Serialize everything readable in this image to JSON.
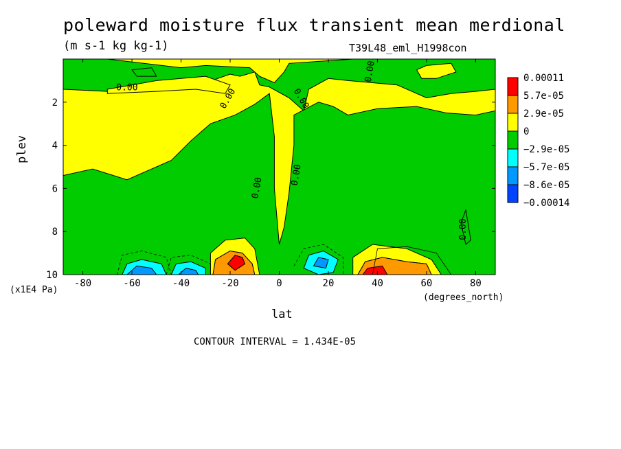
{
  "title": "poleward moisture flux transient mean merdional",
  "units": "(m s-1 kg kg-1)",
  "run_name": "T39L48_eml_H1998con",
  "contour_interval": "CONTOUR INTERVAL = 1.434E-05",
  "chart_data": {
    "type": "heatmap",
    "xlabel": "lat",
    "xunits": "(degrees_north)",
    "ylabel": "plev",
    "yunits": "(x1E4 Pa)",
    "xlim": [
      -88,
      88
    ],
    "ylim": [
      10,
      0
    ],
    "x_ticks": [
      -80,
      -60,
      -40,
      -20,
      0,
      20,
      40,
      60,
      80
    ],
    "y_ticks": [
      2,
      4,
      6,
      8,
      10
    ],
    "contour_label": "0.00",
    "colorbar": {
      "labels": [
        "0.00011",
        "5.7e-05",
        "2.9e-05",
        "0",
        "−2.9e-05",
        "−5.7e-05",
        "−8.6e-05",
        "−0.00014"
      ],
      "colors": [
        "#ff0000",
        "#ff9900",
        "#ffff00",
        "#00cc00",
        "#00ffff",
        "#0099ff",
        "#0044ff"
      ]
    },
    "base_color": "#ffff00",
    "regions": [
      {
        "color": "#00cc00",
        "points": [
          [
            -88,
            0
          ],
          [
            -70,
            0
          ],
          [
            -40,
            0.4
          ],
          [
            -30,
            0.3
          ],
          [
            -12,
            0.4
          ],
          [
            -8,
            0.8
          ],
          [
            -2,
            1.1
          ],
          [
            2,
            0.6
          ],
          [
            4,
            0.2
          ],
          [
            30,
            0
          ],
          [
            60,
            0
          ],
          [
            88,
            0
          ],
          [
            88,
            1.4
          ],
          [
            80,
            1.5
          ],
          [
            70,
            1.6
          ],
          [
            60,
            1.8
          ],
          [
            48,
            1.2
          ],
          [
            38,
            1.1
          ],
          [
            28,
            1.0
          ],
          [
            20,
            0.9
          ],
          [
            12,
            1.4
          ],
          [
            10,
            2.4
          ],
          [
            4,
            1.8
          ],
          [
            -4,
            1.3
          ],
          [
            -8,
            1.2
          ],
          [
            -10,
            0.6
          ],
          [
            -16,
            0.8
          ],
          [
            -20,
            0.7
          ],
          [
            -30,
            1.1
          ],
          [
            -40,
            1.0
          ],
          [
            -50,
            1.4
          ],
          [
            -60,
            1.5
          ],
          [
            -70,
            1.5
          ],
          [
            -88,
            1.4
          ]
        ]
      },
      {
        "color": "#00cc00",
        "points": [
          [
            -88,
            5.4
          ],
          [
            -76,
            5.1
          ],
          [
            -62,
            5.6
          ],
          [
            -44,
            4.7
          ],
          [
            -36,
            3.8
          ],
          [
            -28,
            3.0
          ],
          [
            -18,
            2.6
          ],
          [
            -10,
            2.1
          ],
          [
            -4,
            1.6
          ],
          [
            -2,
            3.6
          ],
          [
            -2,
            6.0
          ],
          [
            0,
            8.6
          ],
          [
            2,
            7.8
          ],
          [
            4,
            6.2
          ],
          [
            6,
            4.0
          ],
          [
            6,
            2.6
          ],
          [
            16,
            2.0
          ],
          [
            22,
            2.2
          ],
          [
            28,
            2.6
          ],
          [
            40,
            2.3
          ],
          [
            56,
            2.2
          ],
          [
            68,
            2.5
          ],
          [
            80,
            2.6
          ],
          [
            88,
            2.4
          ],
          [
            88,
            10
          ],
          [
            -88,
            10
          ]
        ]
      },
      {
        "color": "#ffff00",
        "points": [
          [
            -28,
            10
          ],
          [
            -28,
            9.0
          ],
          [
            -22,
            8.4
          ],
          [
            -14,
            8.3
          ],
          [
            -10,
            8.8
          ],
          [
            -8,
            10
          ]
        ]
      },
      {
        "color": "#ff9900",
        "points": [
          [
            -27,
            10
          ],
          [
            -26,
            9.3
          ],
          [
            -20,
            8.9
          ],
          [
            -15,
            9.0
          ],
          [
            -11,
            9.5
          ],
          [
            -10,
            10
          ]
        ]
      },
      {
        "color": "#ff0000",
        "points": [
          [
            -21,
            9.5
          ],
          [
            -18,
            9.1
          ],
          [
            -15,
            9.2
          ],
          [
            -14,
            9.5
          ],
          [
            -18,
            9.8
          ]
        ]
      },
      {
        "color": "#ffff00",
        "points": [
          [
            30,
            10
          ],
          [
            30,
            9.2
          ],
          [
            38,
            8.6
          ],
          [
            52,
            8.8
          ],
          [
            62,
            9.3
          ],
          [
            66,
            10
          ]
        ]
      },
      {
        "color": "#ff9900",
        "points": [
          [
            32,
            10
          ],
          [
            35,
            9.4
          ],
          [
            42,
            9.2
          ],
          [
            52,
            9.4
          ],
          [
            60,
            9.5
          ],
          [
            62,
            10
          ]
        ]
      },
      {
        "color": "#ff0000",
        "points": [
          [
            34,
            10
          ],
          [
            36,
            9.7
          ],
          [
            42,
            9.6
          ],
          [
            44,
            10
          ]
        ]
      },
      {
        "color": "#00ffff",
        "points": [
          [
            -64,
            10
          ],
          [
            -62,
            9.5
          ],
          [
            -56,
            9.3
          ],
          [
            -48,
            9.5
          ],
          [
            -46,
            10
          ]
        ]
      },
      {
        "color": "#0099ff",
        "points": [
          [
            -62,
            10
          ],
          [
            -58,
            9.6
          ],
          [
            -52,
            9.7
          ],
          [
            -50,
            10
          ]
        ]
      },
      {
        "color": "#00ffff",
        "points": [
          [
            -44,
            10
          ],
          [
            -42,
            9.5
          ],
          [
            -36,
            9.4
          ],
          [
            -30,
            9.7
          ],
          [
            -30,
            10
          ]
        ]
      },
      {
        "color": "#0099ff",
        "points": [
          [
            -41,
            10
          ],
          [
            -38,
            9.7
          ],
          [
            -34,
            9.8
          ],
          [
            -33,
            10
          ]
        ]
      },
      {
        "color": "#00ffff",
        "points": [
          [
            10,
            9.7
          ],
          [
            12,
            9.1
          ],
          [
            18,
            8.9
          ],
          [
            24,
            9.3
          ],
          [
            22,
            9.9
          ],
          [
            16,
            10
          ]
        ]
      },
      {
        "color": "#0099ff",
        "points": [
          [
            14,
            9.6
          ],
          [
            16,
            9.2
          ],
          [
            20,
            9.3
          ],
          [
            19,
            9.7
          ]
        ]
      },
      {
        "color": "#ffff00",
        "points": [
          [
            -70,
            1.4
          ],
          [
            -60,
            1.2
          ],
          [
            -50,
            1.0
          ],
          [
            -40,
            0.9
          ],
          [
            -30,
            0.8
          ],
          [
            -20,
            1.2
          ],
          [
            -22,
            1.6
          ],
          [
            -34,
            1.4
          ],
          [
            -50,
            1.5
          ],
          [
            -70,
            1.6
          ]
        ]
      },
      {
        "color": "#ffff00",
        "points": [
          [
            56,
            0.5
          ],
          [
            60,
            0.3
          ],
          [
            70,
            0.2
          ],
          [
            72,
            0.6
          ],
          [
            64,
            0.9
          ],
          [
            58,
            0.9
          ]
        ]
      },
      {
        "color": "#00cc00",
        "points": [
          [
            74,
            7.6
          ],
          [
            76,
            7.0
          ],
          [
            78,
            8.4
          ],
          [
            76,
            8.6
          ]
        ]
      },
      {
        "color": "#00cc00",
        "points": [
          [
            -60,
            0.5
          ],
          [
            -52,
            0.4
          ],
          [
            -50,
            0.8
          ],
          [
            -58,
            0.8
          ]
        ]
      }
    ],
    "contours": [
      {
        "dash": false,
        "points": [
          [
            -27,
            10
          ],
          [
            -26,
            9.3
          ],
          [
            -20,
            8.9
          ],
          [
            -15,
            9.0
          ],
          [
            -11,
            9.5
          ],
          [
            -10,
            10
          ]
        ]
      },
      {
        "dash": false,
        "points": [
          [
            32,
            10
          ],
          [
            35,
            9.4
          ],
          [
            42,
            9.2
          ],
          [
            52,
            9.4
          ],
          [
            60,
            9.5
          ],
          [
            62,
            10
          ]
        ]
      },
      {
        "dash": false,
        "points": [
          [
            38,
            10
          ],
          [
            40,
            8.8
          ],
          [
            52,
            8.7
          ],
          [
            64,
            9.0
          ],
          [
            70,
            10
          ]
        ]
      },
      {
        "dash": true,
        "points": [
          [
            -66,
            10
          ],
          [
            -64,
            9.1
          ],
          [
            -56,
            8.9
          ],
          [
            -46,
            9.2
          ],
          [
            -44,
            10
          ]
        ]
      },
      {
        "dash": true,
        "points": [
          [
            -46,
            10
          ],
          [
            -44,
            9.2
          ],
          [
            -36,
            9.1
          ],
          [
            -28,
            9.5
          ],
          [
            -28,
            10
          ]
        ]
      },
      {
        "dash": true,
        "points": [
          [
            6,
            9.6
          ],
          [
            10,
            8.8
          ],
          [
            18,
            8.6
          ],
          [
            26,
            9.2
          ],
          [
            26,
            10
          ]
        ]
      }
    ]
  }
}
